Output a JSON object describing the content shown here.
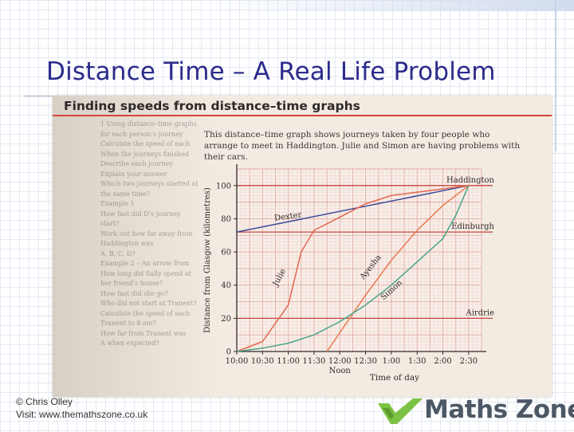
{
  "slide": {
    "title": "Distance Time – A Real Life Problem",
    "credit_line1": "© Chris Olley",
    "credit_line2": "Visit: www.themathszone.co.uk",
    "logo_text": "Maths Zone",
    "colors": {
      "title": "#2b2b8c",
      "logo_green": "#7cc242",
      "logo_grey": "#4c5866"
    }
  },
  "textbook": {
    "heading": "Finding speeds from distance–time graphs",
    "description": "This distance–time graph shows journeys taken by four people who arrange to meet in Haddington. Julie and Simon are having problems with their cars.",
    "left_column": [
      "1 Using distance–time graphs",
      "for each person’s journey",
      "Calculate the speed of each",
      "When the journeys finished",
      "Describe each journey",
      "Explain your answer",
      "Which two journeys started at",
      "the same time?",
      "Example 1",
      "How fast did D’s journey",
      "start?",
      "Work out how far away from",
      "Haddington was",
      "A, B, C, D?",
      "Example 2 – An arrow from",
      "How long did Sally spend at",
      "her friend’s house?",
      "How fast did she go?",
      "Who did not start at Tranent?",
      "Calculate the speed of each",
      "Tranent to 8 am?",
      "How far from Tranent was",
      "A when expected?"
    ]
  },
  "chart_data": {
    "type": "line",
    "title": "",
    "xlabel": "Time of day",
    "ylabel": "Distance from Glasgow (kilometres)",
    "x_ticks": [
      "10:00",
      "10:30",
      "11:00",
      "11:30",
      "12:00",
      "12:30",
      "1:00",
      "1:30",
      "2:00",
      "2:30"
    ],
    "x_annotation": "Noon",
    "y_ticks": [
      0,
      20,
      40,
      60,
      80,
      100
    ],
    "xlim": [
      "10:00",
      "2:45"
    ],
    "ylim": [
      0,
      110
    ],
    "grid": true,
    "reference_lines": [
      {
        "label": "Haddington",
        "y": 100
      },
      {
        "label": "Edinburgh",
        "y": 72
      },
      {
        "label": "Airdrie",
        "y": 20
      }
    ],
    "series": [
      {
        "name": "Dexter",
        "color": "#3d4d9c",
        "x": [
          "10:00",
          "2:30"
        ],
        "y": [
          72,
          100
        ]
      },
      {
        "name": "Julie",
        "color": "#e2674f",
        "x": [
          "10:00",
          "10:30",
          "11:00",
          "11:15",
          "11:30",
          "12:00",
          "12:30",
          "1:00",
          "1:30",
          "2:00",
          "2:30"
        ],
        "y": [
          0,
          6,
          28,
          60,
          73,
          81,
          89,
          94,
          96,
          98,
          100
        ]
      },
      {
        "name": "Ayesha",
        "color": "#e87a4f",
        "x": [
          "11:45",
          "12:30",
          "1:00",
          "1:30",
          "2:00",
          "2:30"
        ],
        "y": [
          0,
          34,
          55,
          73,
          88,
          100
        ]
      },
      {
        "name": "Simon",
        "color": "#4aa58a",
        "x": [
          "10:00",
          "10:30",
          "11:00",
          "11:30",
          "12:00",
          "12:30",
          "1:00",
          "1:30",
          "2:00",
          "2:15",
          "2:30"
        ],
        "y": [
          0,
          2,
          5,
          10,
          18,
          28,
          40,
          54,
          68,
          82,
          100
        ]
      }
    ]
  }
}
